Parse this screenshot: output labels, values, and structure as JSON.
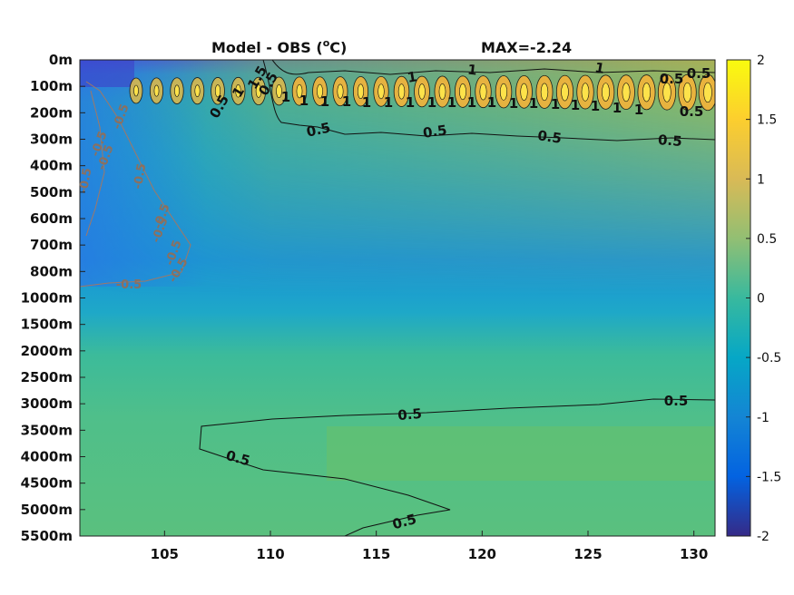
{
  "chart_data": {
    "type": "heatmap",
    "title": "Model - OBS (°C)",
    "title_text": "Model - OBS (",
    "title_unit": "C)",
    "title_degree": "o",
    "annotation": "MAX=-2.24",
    "x": {
      "ticks": [
        105,
        110,
        115,
        120,
        125,
        130
      ],
      "lim": [
        101,
        131
      ]
    },
    "y": {
      "ticks": [
        "0m",
        "100m",
        "200m",
        "300m",
        "400m",
        "500m",
        "600m",
        "700m",
        "800m",
        "1000m",
        "1500m",
        "2000m",
        "2500m",
        "3000m",
        "3500m",
        "4000m",
        "4500m",
        "5000m",
        "5500m"
      ],
      "reversed": true
    },
    "colorbar": {
      "lim": [
        -2,
        2
      ],
      "ticks": [
        "2",
        "1.5",
        "1",
        "0.5",
        "0",
        "-0.5",
        "-1",
        "-1.5",
        "-2"
      ],
      "colormap": "parula",
      "location": "right"
    },
    "contour_levels": [
      0.5,
      1,
      -0.5
    ],
    "contour_labels": {
      "upper": [
        "0.5",
        "1",
        "1.5",
        "0.5",
        "0.5",
        "0.5",
        "0.5",
        "1",
        "1",
        "1",
        "1",
        "1",
        "1",
        "1",
        "1",
        "1",
        "1",
        "1",
        "1",
        "1",
        "1",
        "1",
        "1",
        "1",
        "1",
        "1",
        "1",
        "1",
        "0.5",
        "0.5",
        "0.5",
        "0.5"
      ],
      "deep": [
        "0.5",
        "0.5",
        "0.5",
        "0.5"
      ],
      "negative": [
        "-0.5",
        "-0.5",
        "-0.5",
        "-0.5",
        "-0.5",
        "-0.5",
        "-0.5",
        "-0.5",
        "-0.5",
        "-0.5"
      ]
    },
    "grid": false
  }
}
